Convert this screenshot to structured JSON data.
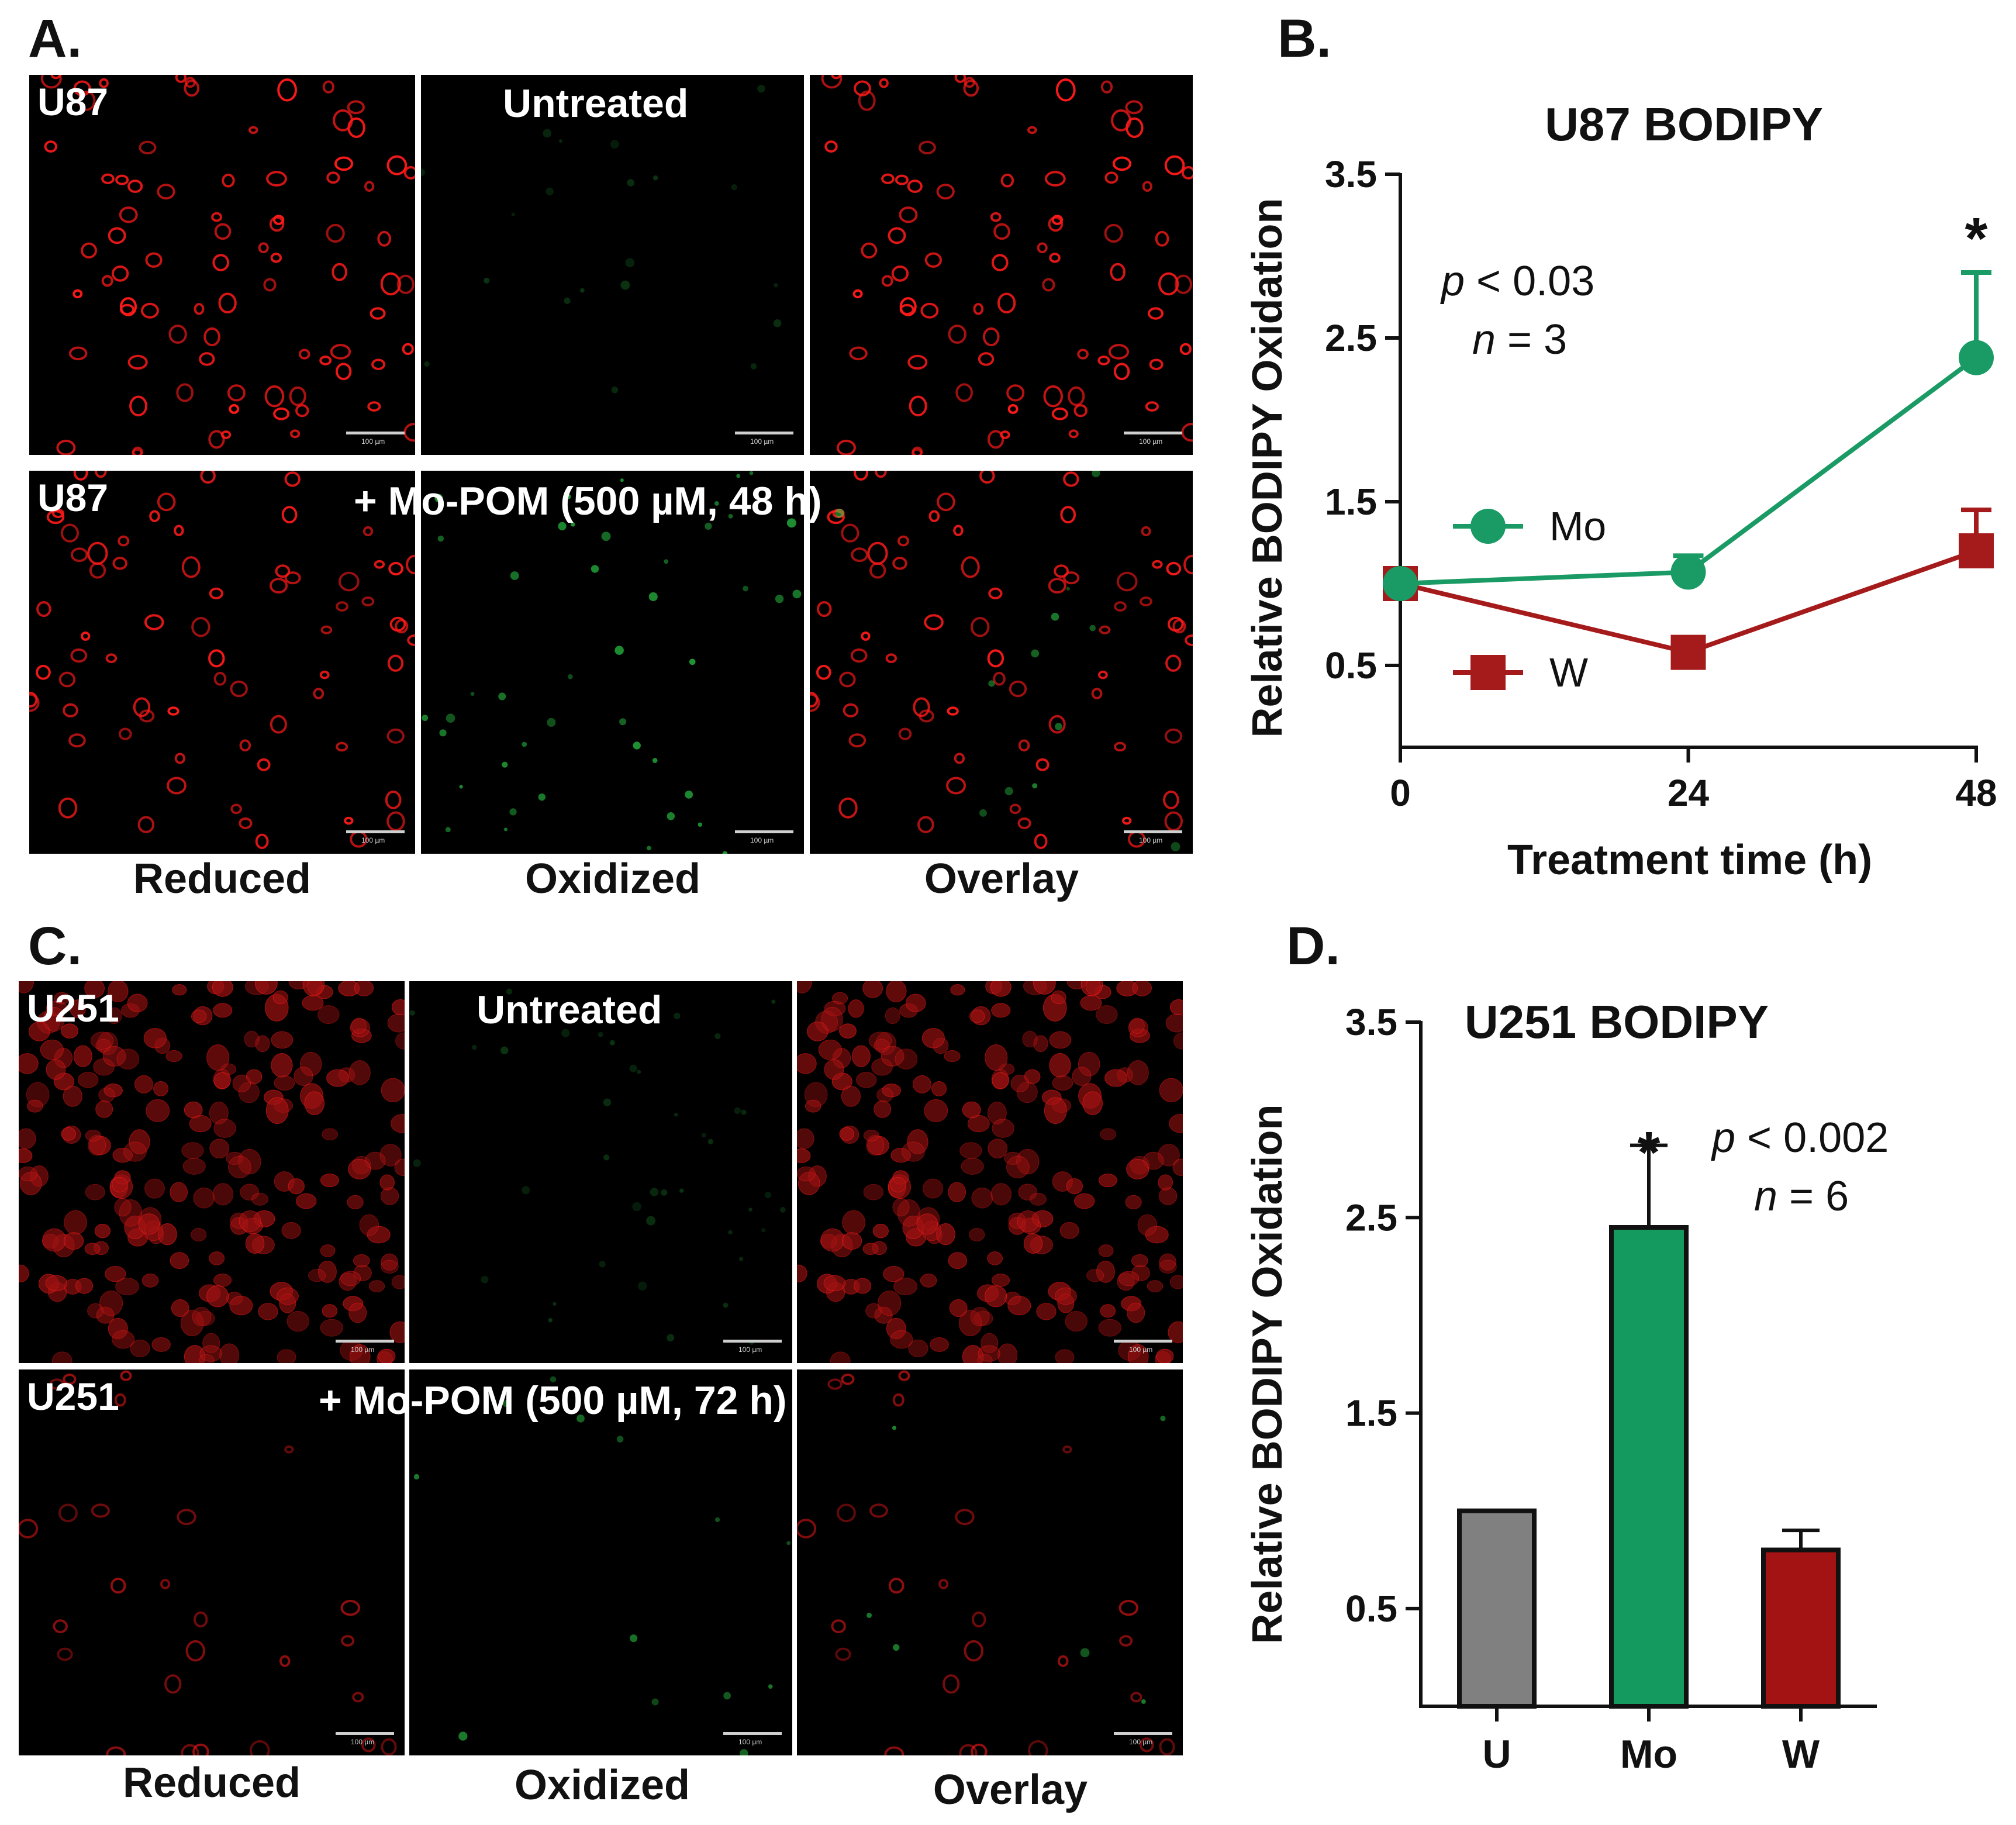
{
  "panels": {
    "a": {
      "letter": "A.",
      "top_row": {
        "cell_line": "U87",
        "condition": "Untreated"
      },
      "bottom_row": {
        "cell_line": "U87",
        "condition": "+ Mo-POM (500 µM, 48 h)"
      },
      "columns": [
        "Reduced",
        "Oxidized",
        "Overlay"
      ],
      "scale_bar": "100 µm"
    },
    "b": {
      "letter": "B."
    },
    "c": {
      "letter": "C.",
      "top_row": {
        "cell_line": "U251",
        "condition": "Untreated"
      },
      "bottom_row": {
        "cell_line": "U251",
        "condition": "+ Mo-POM (500 µM, 72 h)"
      },
      "columns": [
        "Reduced",
        "Oxidized",
        "Overlay"
      ],
      "scale_bar": "100 µm"
    },
    "d": {
      "letter": "D."
    }
  },
  "chart_data": [
    {
      "type": "line",
      "title": "U87 BODIPY",
      "xlabel": "Treatment time (h)",
      "ylabel": "Relative BODIPY Oxidation",
      "x": [
        0,
        24,
        48
      ],
      "xticks": [
        "0",
        "24",
        "48"
      ],
      "yticks": [
        "0.5",
        "1.5",
        "2.5",
        "3.5"
      ],
      "ylim": [
        0,
        3.5
      ],
      "series": [
        {
          "name": "Mo",
          "color": "#1a9a64",
          "marker": "circle",
          "values": [
            1.0,
            1.07,
            2.38
          ],
          "errors": [
            0.0,
            0.1,
            0.52
          ]
        },
        {
          "name": "W",
          "color": "#a51b1b",
          "marker": "square",
          "values": [
            1.0,
            0.58,
            1.2
          ],
          "errors": [
            0.0,
            0.0,
            0.25
          ]
        }
      ],
      "annotations": {
        "p_label": "p",
        "p_value": "< 0.03",
        "n_label": "n",
        "n_value": "= 3",
        "significance": "*"
      }
    },
    {
      "type": "bar",
      "title": "U251 BODIPY",
      "ylabel": "Relative BODIPY Oxidation",
      "categories": [
        "U",
        "Mo",
        "W"
      ],
      "values": [
        1.0,
        2.45,
        0.8
      ],
      "errors": [
        0.0,
        0.42,
        0.1
      ],
      "colors": [
        "#808080",
        "#14995f",
        "#a31313"
      ],
      "yticks": [
        "0.5",
        "1.5",
        "2.5",
        "3.5"
      ],
      "ylim": [
        0,
        3.5
      ],
      "annotations": {
        "p_label": "p",
        "p_value": "< 0.002",
        "n_label": "n",
        "n_value": "= 6",
        "significance": "*"
      }
    }
  ]
}
